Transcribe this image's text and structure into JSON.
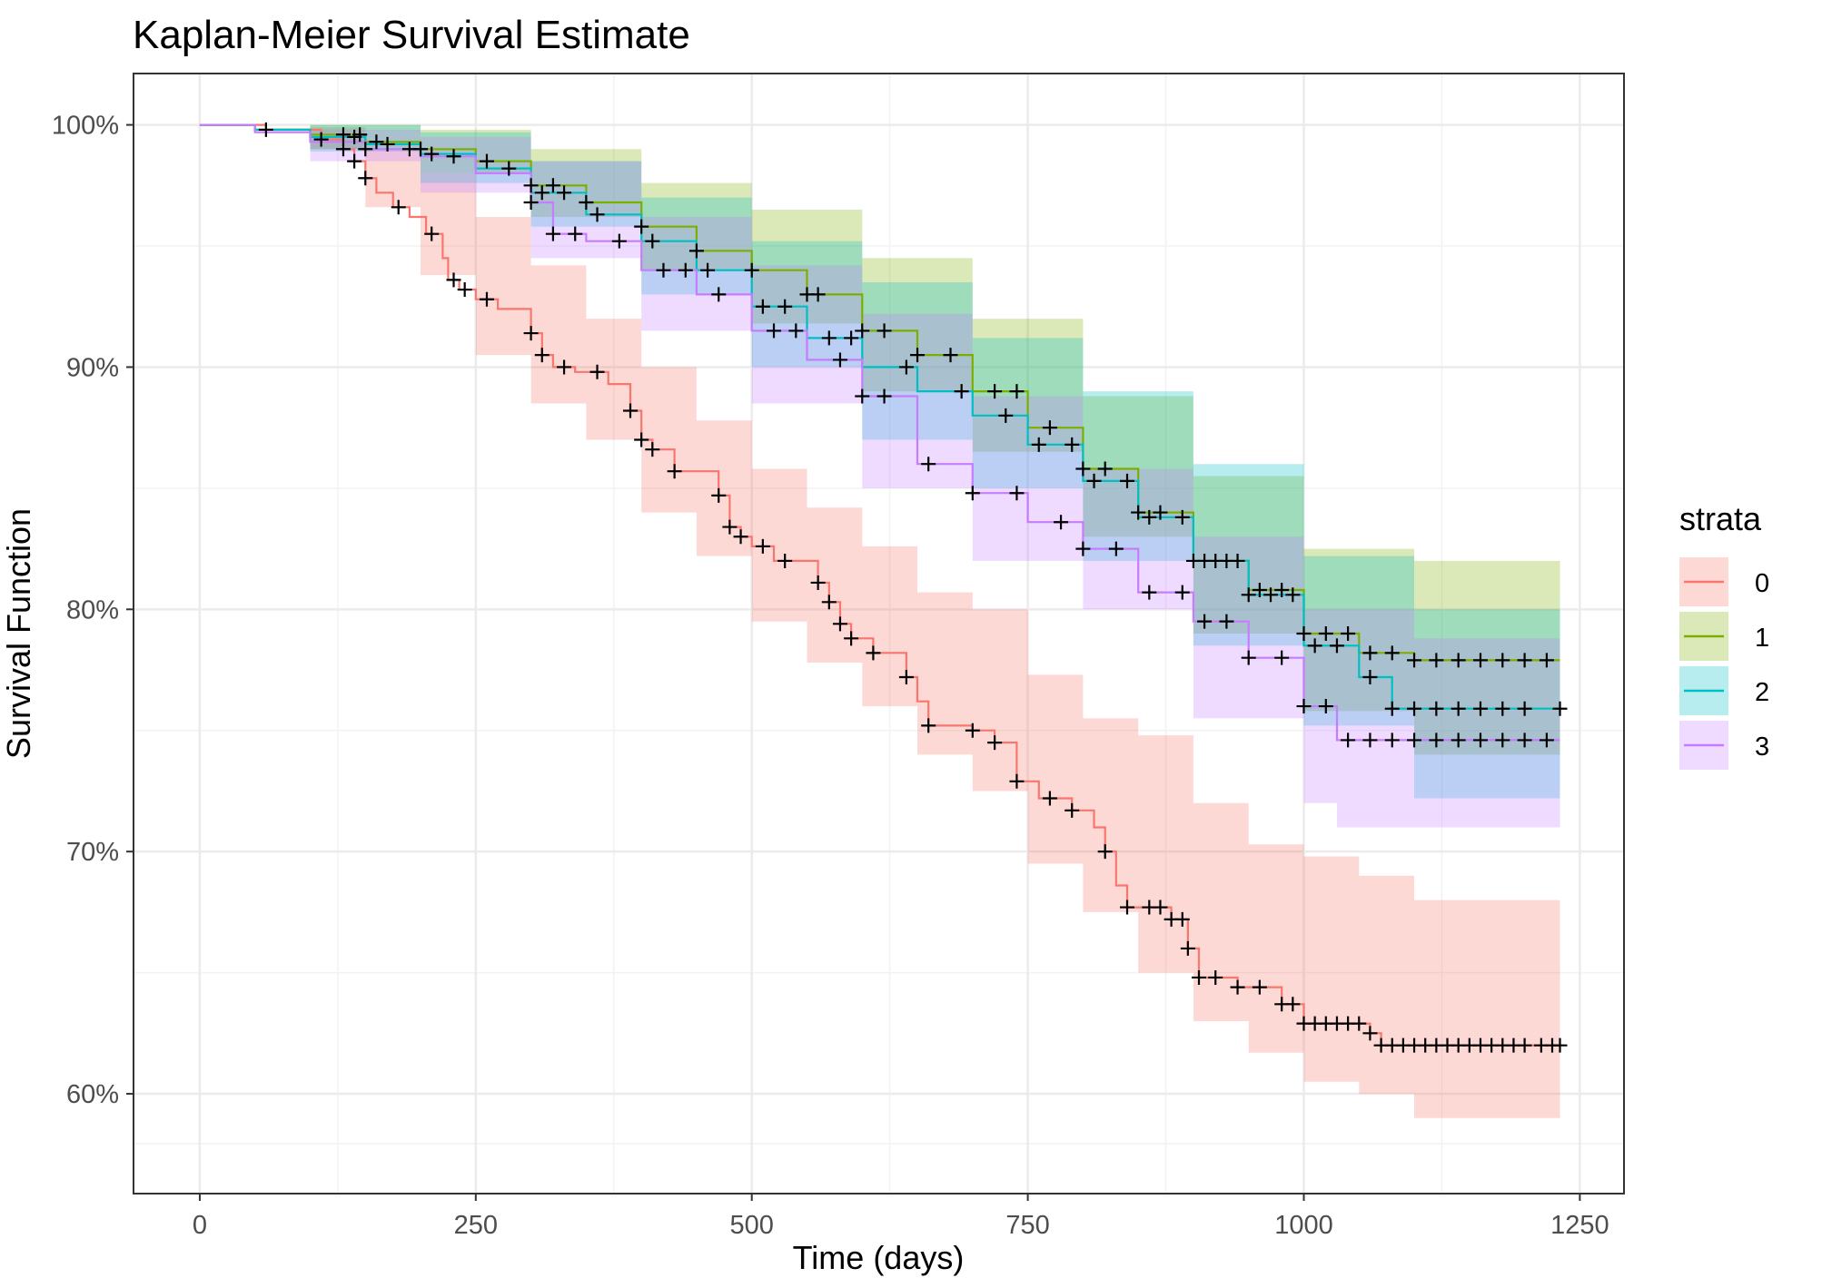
{
  "chart_data": {
    "type": "line",
    "title": "Kaplan-Meier Survival Estimate",
    "xlabel": "Time (days)",
    "ylabel": "Survival Function",
    "xlim": [
      -60,
      1290
    ],
    "ylim": [
      0.5588,
      1.0212
    ],
    "x_ticks": [
      0,
      250,
      500,
      750,
      1000,
      1250
    ],
    "x_tick_labels": [
      "0",
      "250",
      "500",
      "750",
      "1000",
      "1250"
    ],
    "y_ticks": [
      0.6,
      0.7,
      0.8,
      0.9,
      1.0
    ],
    "y_tick_labels": [
      "60%",
      "70%",
      "80%",
      "90%",
      "100%"
    ],
    "grid": true,
    "legend": {
      "title": "strata",
      "position": "right"
    },
    "series": [
      {
        "name": "0",
        "color": "#F8766D",
        "points": [
          [
            0,
            1.0
          ],
          [
            60,
            0.998
          ],
          [
            110,
            0.994
          ],
          [
            130,
            0.99
          ],
          [
            140,
            0.985
          ],
          [
            150,
            0.978
          ],
          [
            160,
            0.972
          ],
          [
            175,
            0.966
          ],
          [
            190,
            0.962
          ],
          [
            205,
            0.955
          ],
          [
            220,
            0.945
          ],
          [
            225,
            0.936
          ],
          [
            235,
            0.932
          ],
          [
            250,
            0.928
          ],
          [
            270,
            0.924
          ],
          [
            300,
            0.914
          ],
          [
            310,
            0.905
          ],
          [
            320,
            0.9
          ],
          [
            340,
            0.898
          ],
          [
            370,
            0.893
          ],
          [
            390,
            0.882
          ],
          [
            400,
            0.87
          ],
          [
            410,
            0.866
          ],
          [
            430,
            0.857
          ],
          [
            470,
            0.847
          ],
          [
            480,
            0.834
          ],
          [
            490,
            0.83
          ],
          [
            500,
            0.826
          ],
          [
            520,
            0.82
          ],
          [
            560,
            0.811
          ],
          [
            570,
            0.803
          ],
          [
            580,
            0.794
          ],
          [
            590,
            0.788
          ],
          [
            610,
            0.782
          ],
          [
            640,
            0.772
          ],
          [
            650,
            0.762
          ],
          [
            660,
            0.752
          ],
          [
            700,
            0.75
          ],
          [
            720,
            0.745
          ],
          [
            740,
            0.729
          ],
          [
            760,
            0.722
          ],
          [
            790,
            0.717
          ],
          [
            810,
            0.71
          ],
          [
            820,
            0.7
          ],
          [
            830,
            0.686
          ],
          [
            840,
            0.677
          ],
          [
            880,
            0.672
          ],
          [
            895,
            0.66
          ],
          [
            905,
            0.648
          ],
          [
            940,
            0.644
          ],
          [
            980,
            0.637
          ],
          [
            1000,
            0.629
          ],
          [
            1060,
            0.625
          ],
          [
            1070,
            0.62
          ],
          [
            1232,
            0.62
          ]
        ],
        "ci_lower": [
          [
            0,
            1.0
          ],
          [
            100,
            0.99
          ],
          [
            150,
            0.966
          ],
          [
            200,
            0.938
          ],
          [
            250,
            0.905
          ],
          [
            300,
            0.885
          ],
          [
            350,
            0.87
          ],
          [
            400,
            0.84
          ],
          [
            450,
            0.822
          ],
          [
            500,
            0.795
          ],
          [
            550,
            0.778
          ],
          [
            600,
            0.76
          ],
          [
            650,
            0.74
          ],
          [
            700,
            0.725
          ],
          [
            750,
            0.695
          ],
          [
            800,
            0.675
          ],
          [
            850,
            0.65
          ],
          [
            900,
            0.63
          ],
          [
            950,
            0.617
          ],
          [
            1000,
            0.605
          ],
          [
            1050,
            0.6
          ],
          [
            1100,
            0.59
          ],
          [
            1232,
            0.58
          ]
        ],
        "ci_upper": [
          [
            0,
            1.0
          ],
          [
            100,
            0.999
          ],
          [
            150,
            0.99
          ],
          [
            200,
            0.98
          ],
          [
            250,
            0.962
          ],
          [
            300,
            0.942
          ],
          [
            350,
            0.92
          ],
          [
            400,
            0.9
          ],
          [
            450,
            0.878
          ],
          [
            500,
            0.858
          ],
          [
            550,
            0.842
          ],
          [
            600,
            0.826
          ],
          [
            650,
            0.807
          ],
          [
            700,
            0.8
          ],
          [
            750,
            0.773
          ],
          [
            800,
            0.755
          ],
          [
            850,
            0.748
          ],
          [
            900,
            0.72
          ],
          [
            950,
            0.703
          ],
          [
            1000,
            0.698
          ],
          [
            1050,
            0.69
          ],
          [
            1100,
            0.68
          ],
          [
            1232,
            0.668
          ]
        ]
      },
      {
        "name": "1",
        "color": "#7CAE00",
        "points": [
          [
            0,
            1.0
          ],
          [
            50,
            0.998
          ],
          [
            100,
            0.996
          ],
          [
            150,
            0.993
          ],
          [
            200,
            0.99
          ],
          [
            250,
            0.985
          ],
          [
            300,
            0.975
          ],
          [
            350,
            0.968
          ],
          [
            400,
            0.958
          ],
          [
            450,
            0.948
          ],
          [
            500,
            0.94
          ],
          [
            550,
            0.93
          ],
          [
            600,
            0.915
          ],
          [
            650,
            0.905
          ],
          [
            700,
            0.89
          ],
          [
            750,
            0.875
          ],
          [
            800,
            0.858
          ],
          [
            850,
            0.84
          ],
          [
            900,
            0.82
          ],
          [
            950,
            0.808
          ],
          [
            1000,
            0.79
          ],
          [
            1050,
            0.782
          ],
          [
            1100,
            0.779
          ],
          [
            1232,
            0.779
          ]
        ],
        "ci_lower": [
          [
            0,
            1.0
          ],
          [
            100,
            0.99
          ],
          [
            200,
            0.98
          ],
          [
            300,
            0.962
          ],
          [
            400,
            0.94
          ],
          [
            500,
            0.918
          ],
          [
            600,
            0.89
          ],
          [
            700,
            0.865
          ],
          [
            800,
            0.83
          ],
          [
            900,
            0.79
          ],
          [
            1000,
            0.758
          ],
          [
            1100,
            0.74
          ],
          [
            1232,
            0.738
          ]
        ],
        "ci_upper": [
          [
            0,
            1.0
          ],
          [
            100,
            1.0
          ],
          [
            200,
            0.998
          ],
          [
            300,
            0.99
          ],
          [
            400,
            0.976
          ],
          [
            500,
            0.965
          ],
          [
            600,
            0.945
          ],
          [
            700,
            0.92
          ],
          [
            800,
            0.888
          ],
          [
            900,
            0.855
          ],
          [
            1000,
            0.825
          ],
          [
            1100,
            0.82
          ],
          [
            1232,
            0.82
          ]
        ]
      },
      {
        "name": "2",
        "color": "#00BFC4",
        "points": [
          [
            0,
            1.0
          ],
          [
            50,
            0.998
          ],
          [
            100,
            0.995
          ],
          [
            150,
            0.992
          ],
          [
            200,
            0.988
          ],
          [
            250,
            0.982
          ],
          [
            300,
            0.972
          ],
          [
            350,
            0.963
          ],
          [
            400,
            0.952
          ],
          [
            450,
            0.94
          ],
          [
            500,
            0.925
          ],
          [
            550,
            0.912
          ],
          [
            600,
            0.9
          ],
          [
            650,
            0.89
          ],
          [
            700,
            0.88
          ],
          [
            750,
            0.868
          ],
          [
            800,
            0.853
          ],
          [
            850,
            0.838
          ],
          [
            900,
            0.82
          ],
          [
            950,
            0.806
          ],
          [
            1000,
            0.785
          ],
          [
            1050,
            0.772
          ],
          [
            1080,
            0.759
          ],
          [
            1232,
            0.759
          ]
        ],
        "ci_lower": [
          [
            0,
            1.0
          ],
          [
            100,
            0.989
          ],
          [
            200,
            0.976
          ],
          [
            300,
            0.958
          ],
          [
            400,
            0.93
          ],
          [
            500,
            0.9
          ],
          [
            600,
            0.87
          ],
          [
            700,
            0.85
          ],
          [
            800,
            0.82
          ],
          [
            900,
            0.785
          ],
          [
            1000,
            0.752
          ],
          [
            1100,
            0.722
          ],
          [
            1232,
            0.72
          ]
        ],
        "ci_upper": [
          [
            0,
            1.0
          ],
          [
            100,
            1.0
          ],
          [
            200,
            0.997
          ],
          [
            300,
            0.985
          ],
          [
            400,
            0.97
          ],
          [
            500,
            0.952
          ],
          [
            600,
            0.935
          ],
          [
            700,
            0.912
          ],
          [
            800,
            0.89
          ],
          [
            900,
            0.86
          ],
          [
            1000,
            0.822
          ],
          [
            1100,
            0.8
          ],
          [
            1232,
            0.8
          ]
        ]
      },
      {
        "name": "3",
        "color": "#C77CFF",
        "points": [
          [
            0,
            1.0
          ],
          [
            50,
            0.997
          ],
          [
            100,
            0.993
          ],
          [
            150,
            0.99
          ],
          [
            200,
            0.987
          ],
          [
            250,
            0.98
          ],
          [
            300,
            0.968
          ],
          [
            320,
            0.955
          ],
          [
            350,
            0.952
          ],
          [
            400,
            0.94
          ],
          [
            450,
            0.93
          ],
          [
            500,
            0.915
          ],
          [
            550,
            0.903
          ],
          [
            600,
            0.888
          ],
          [
            650,
            0.86
          ],
          [
            700,
            0.848
          ],
          [
            750,
            0.836
          ],
          [
            800,
            0.825
          ],
          [
            850,
            0.807
          ],
          [
            900,
            0.795
          ],
          [
            950,
            0.78
          ],
          [
            1000,
            0.76
          ],
          [
            1030,
            0.746
          ],
          [
            1232,
            0.746
          ]
        ],
        "ci_lower": [
          [
            0,
            1.0
          ],
          [
            100,
            0.985
          ],
          [
            200,
            0.972
          ],
          [
            300,
            0.945
          ],
          [
            400,
            0.915
          ],
          [
            500,
            0.885
          ],
          [
            600,
            0.85
          ],
          [
            700,
            0.82
          ],
          [
            800,
            0.8
          ],
          [
            900,
            0.755
          ],
          [
            1000,
            0.72
          ],
          [
            1030,
            0.71
          ],
          [
            1232,
            0.71
          ]
        ],
        "ci_upper": [
          [
            0,
            1.0
          ],
          [
            100,
            0.998
          ],
          [
            200,
            0.995
          ],
          [
            300,
            0.985
          ],
          [
            400,
            0.962
          ],
          [
            500,
            0.942
          ],
          [
            600,
            0.922
          ],
          [
            700,
            0.888
          ],
          [
            800,
            0.858
          ],
          [
            900,
            0.83
          ],
          [
            1000,
            0.8
          ],
          [
            1100,
            0.788
          ],
          [
            1232,
            0.788
          ]
        ]
      }
    ],
    "censor_marks": [
      {
        "series": "0",
        "x": [
          60,
          110,
          130,
          140,
          150,
          180,
          210,
          230,
          240,
          260,
          300,
          310,
          330,
          360,
          390,
          400,
          410,
          430,
          470,
          480,
          490,
          510,
          530,
          560,
          570,
          580,
          590,
          610,
          640,
          660,
          700,
          720,
          740,
          770,
          790,
          820,
          840,
          860,
          870,
          880,
          890,
          895,
          905,
          920,
          940,
          960,
          980,
          990,
          1000,
          1010,
          1020,
          1030,
          1040,
          1050,
          1060,
          1070,
          1080,
          1090,
          1100,
          1110,
          1120,
          1130,
          1140,
          1150,
          1160,
          1170,
          1180,
          1190,
          1200,
          1215,
          1225,
          1232
        ]
      },
      {
        "series": "1",
        "x": [
          130,
          145,
          160,
          200,
          260,
          300,
          320,
          350,
          400,
          450,
          500,
          550,
          560,
          600,
          620,
          650,
          680,
          720,
          740,
          770,
          800,
          820,
          850,
          870,
          900,
          920,
          940,
          960,
          980,
          1000,
          1020,
          1040,
          1060,
          1080,
          1100,
          1120,
          1140,
          1160,
          1180,
          1200,
          1220
        ]
      },
      {
        "series": "2",
        "x": [
          140,
          170,
          210,
          280,
          310,
          330,
          360,
          410,
          460,
          510,
          530,
          570,
          590,
          640,
          690,
          730,
          760,
          790,
          810,
          840,
          860,
          890,
          910,
          930,
          950,
          970,
          990,
          1010,
          1030,
          1060,
          1080,
          1100,
          1120,
          1140,
          1160,
          1180,
          1200,
          1232
        ]
      },
      {
        "series": "3",
        "x": [
          150,
          190,
          230,
          300,
          320,
          340,
          380,
          420,
          440,
          470,
          520,
          540,
          580,
          600,
          620,
          660,
          700,
          740,
          780,
          800,
          830,
          860,
          890,
          910,
          930,
          950,
          980,
          1000,
          1020,
          1040,
          1060,
          1080,
          1100,
          1120,
          1140,
          1160,
          1180,
          1200,
          1220
        ]
      }
    ]
  }
}
